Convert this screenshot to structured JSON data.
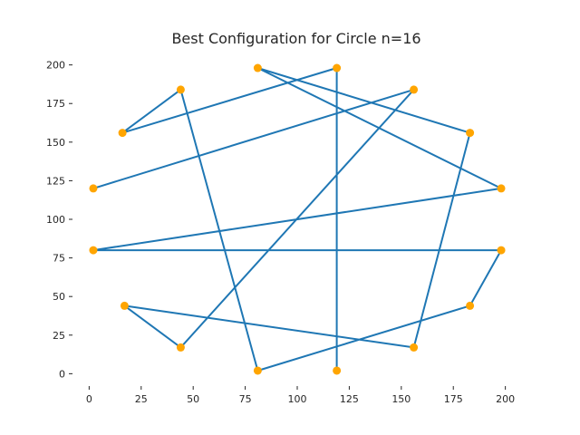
{
  "chart_data": {
    "type": "line",
    "title": "Best Configuration for Circle n=16",
    "xlabel": "",
    "ylabel": "",
    "xlim": [
      -8,
      208
    ],
    "ylim": [
      -8,
      208
    ],
    "x_ticks": [
      0,
      25,
      50,
      75,
      100,
      125,
      150,
      175,
      200
    ],
    "y_ticks": [
      0,
      25,
      50,
      75,
      100,
      125,
      150,
      175,
      200
    ],
    "grid": false,
    "line_color": "#1f77b4",
    "point_color": "#ffa500",
    "points": [
      {
        "x": 119,
        "y": 198
      },
      {
        "x": 119,
        "y": 2
      },
      {
        "x": 119,
        "y": 198
      },
      {
        "x": 16,
        "y": 156
      },
      {
        "x": 44,
        "y": 184
      },
      {
        "x": 81,
        "y": 2
      },
      {
        "x": 183,
        "y": 44
      },
      {
        "x": 198,
        "y": 80
      },
      {
        "x": 2,
        "y": 80
      },
      {
        "x": 198,
        "y": 120
      },
      {
        "x": 81,
        "y": 198
      },
      {
        "x": 183,
        "y": 156
      },
      {
        "x": 156,
        "y": 17
      },
      {
        "x": 17,
        "y": 44
      },
      {
        "x": 44,
        "y": 17
      },
      {
        "x": 156,
        "y": 184
      },
      {
        "x": 2,
        "y": 120
      }
    ]
  }
}
